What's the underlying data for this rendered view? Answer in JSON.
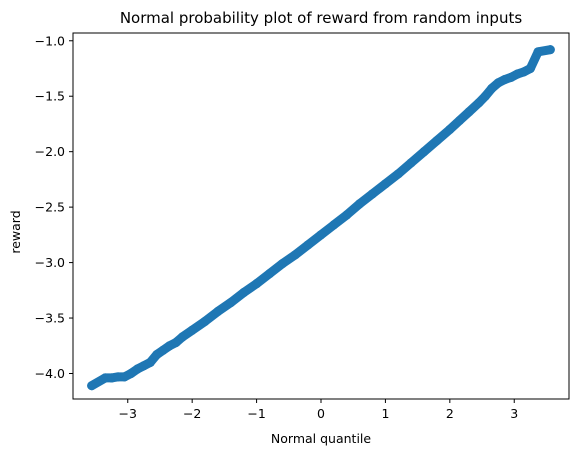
{
  "chart_data": {
    "type": "scatter",
    "title": "Normal probability plot of reward from random inputs",
    "xlabel": "Normal quantile",
    "ylabel": "reward",
    "xlim": [
      -3.85,
      3.85
    ],
    "ylim": [
      -4.23,
      -0.93
    ],
    "xticks": [
      -3,
      -2,
      -1,
      0,
      1,
      2,
      3
    ],
    "yticks": [
      -4.0,
      -3.5,
      -3.0,
      -2.5,
      -2.0,
      -1.5,
      -1.0
    ],
    "xtick_labels": [
      "−3",
      "−2",
      "−1",
      "0",
      "1",
      "2",
      "3"
    ],
    "ytick_labels": [
      "−4.0",
      "−3.5",
      "−3.0",
      "−2.5",
      "−2.0",
      "−1.5",
      "−1.0"
    ],
    "grid": false,
    "marker_color": "#1f77b4",
    "series": [
      {
        "points": [
          {
            "x": -3.56,
            "y": -4.11
          },
          {
            "x": -3.35,
            "y": -4.04
          },
          {
            "x": -3.25,
            "y": -4.04
          },
          {
            "x": -3.15,
            "y": -4.03
          },
          {
            "x": -3.05,
            "y": -4.03
          },
          {
            "x": -2.95,
            "y": -4.0
          },
          {
            "x": -2.85,
            "y": -3.96
          },
          {
            "x": -2.75,
            "y": -3.93
          },
          {
            "x": -2.65,
            "y": -3.9
          },
          {
            "x": -2.55,
            "y": -3.83
          },
          {
            "x": -2.45,
            "y": -3.79
          },
          {
            "x": -2.35,
            "y": -3.75
          },
          {
            "x": -2.25,
            "y": -3.72
          },
          {
            "x": -2.15,
            "y": -3.67
          },
          {
            "x": -2.0,
            "y": -3.61
          },
          {
            "x": -1.8,
            "y": -3.53
          },
          {
            "x": -1.6,
            "y": -3.44
          },
          {
            "x": -1.4,
            "y": -3.36
          },
          {
            "x": -1.2,
            "y": -3.27
          },
          {
            "x": -1.0,
            "y": -3.19
          },
          {
            "x": -0.8,
            "y": -3.1
          },
          {
            "x": -0.6,
            "y": -3.01
          },
          {
            "x": -0.4,
            "y": -2.93
          },
          {
            "x": -0.2,
            "y": -2.84
          },
          {
            "x": 0.0,
            "y": -2.75
          },
          {
            "x": 0.2,
            "y": -2.66
          },
          {
            "x": 0.4,
            "y": -2.57
          },
          {
            "x": 0.6,
            "y": -2.47
          },
          {
            "x": 0.8,
            "y": -2.38
          },
          {
            "x": 1.0,
            "y": -2.29
          },
          {
            "x": 1.2,
            "y": -2.2
          },
          {
            "x": 1.4,
            "y": -2.1
          },
          {
            "x": 1.6,
            "y": -2.0
          },
          {
            "x": 1.8,
            "y": -1.9
          },
          {
            "x": 2.0,
            "y": -1.8
          },
          {
            "x": 2.15,
            "y": -1.72
          },
          {
            "x": 2.3,
            "y": -1.64
          },
          {
            "x": 2.45,
            "y": -1.56
          },
          {
            "x": 2.55,
            "y": -1.5
          },
          {
            "x": 2.65,
            "y": -1.43
          },
          {
            "x": 2.75,
            "y": -1.38
          },
          {
            "x": 2.85,
            "y": -1.35
          },
          {
            "x": 2.95,
            "y": -1.33
          },
          {
            "x": 3.05,
            "y": -1.3
          },
          {
            "x": 3.15,
            "y": -1.28
          },
          {
            "x": 3.25,
            "y": -1.25
          },
          {
            "x": 3.37,
            "y": -1.1
          },
          {
            "x": 3.56,
            "y": -1.08
          }
        ]
      }
    ]
  }
}
